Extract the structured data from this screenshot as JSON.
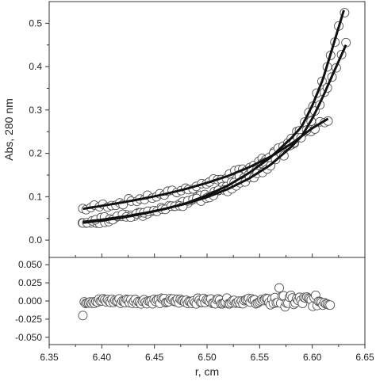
{
  "chart_data": [
    {
      "panel": "top",
      "type": "scatter",
      "xlabel": "",
      "ylabel": "Abs, 280 nm",
      "xlim": [
        6.35,
        6.65
      ],
      "ylim": [
        -0.04,
        0.55
      ],
      "yticks": [
        0.0,
        0.1,
        0.2,
        0.3,
        0.4,
        0.5
      ],
      "ytick_labels": [
        "0.0",
        "0.1",
        "0.2",
        "0.3",
        "0.4",
        "0.5"
      ],
      "fit_style": "solid black curve",
      "marker_style": "open circles",
      "series": [
        {
          "x": [
            6.382,
            6.4,
            6.42,
            6.44,
            6.46,
            6.48,
            6.5,
            6.52,
            6.54,
            6.56,
            6.58,
            6.6,
            6.615
          ],
          "values": [
            0.072,
            0.079,
            0.087,
            0.096,
            0.106,
            0.118,
            0.132,
            0.148,
            0.168,
            0.192,
            0.222,
            0.258,
            0.28
          ]
        },
        {
          "x": [
            6.382,
            6.4,
            6.42,
            6.44,
            6.46,
            6.48,
            6.5,
            6.52,
            6.54,
            6.56,
            6.58,
            6.59,
            6.6,
            6.61,
            6.62,
            6.63
          ],
          "values": [
            0.04,
            0.045,
            0.052,
            0.061,
            0.072,
            0.085,
            0.103,
            0.126,
            0.155,
            0.19,
            0.235,
            0.262,
            0.31,
            0.37,
            0.45,
            0.53
          ]
        },
        {
          "x": [
            6.382,
            6.4,
            6.42,
            6.44,
            6.46,
            6.48,
            6.5,
            6.52,
            6.54,
            6.56,
            6.58,
            6.59,
            6.6,
            6.61,
            6.62,
            6.632
          ],
          "values": [
            0.042,
            0.047,
            0.054,
            0.062,
            0.072,
            0.084,
            0.099,
            0.118,
            0.142,
            0.173,
            0.215,
            0.24,
            0.28,
            0.33,
            0.385,
            0.45
          ]
        }
      ]
    },
    {
      "panel": "bottom",
      "type": "scatter",
      "xlabel": "r, cm",
      "ylabel": "",
      "xlim": [
        6.35,
        6.65
      ],
      "ylim": [
        -0.06,
        0.06
      ],
      "xticks": [
        6.35,
        6.4,
        6.45,
        6.5,
        6.55,
        6.6,
        6.65
      ],
      "xtick_labels": [
        "6.35",
        "6.40",
        "6.45",
        "6.50",
        "6.55",
        "6.60",
        "6.65"
      ],
      "yticks": [
        0.05,
        0.025,
        0.0,
        -0.025,
        -0.05
      ],
      "ytick_labels": [
        "0.050",
        "0.025",
        "0.000",
        "-0.025",
        "-0.050"
      ],
      "marker_style": "open circles",
      "residual_range": [
        -0.02,
        0.02
      ]
    }
  ]
}
